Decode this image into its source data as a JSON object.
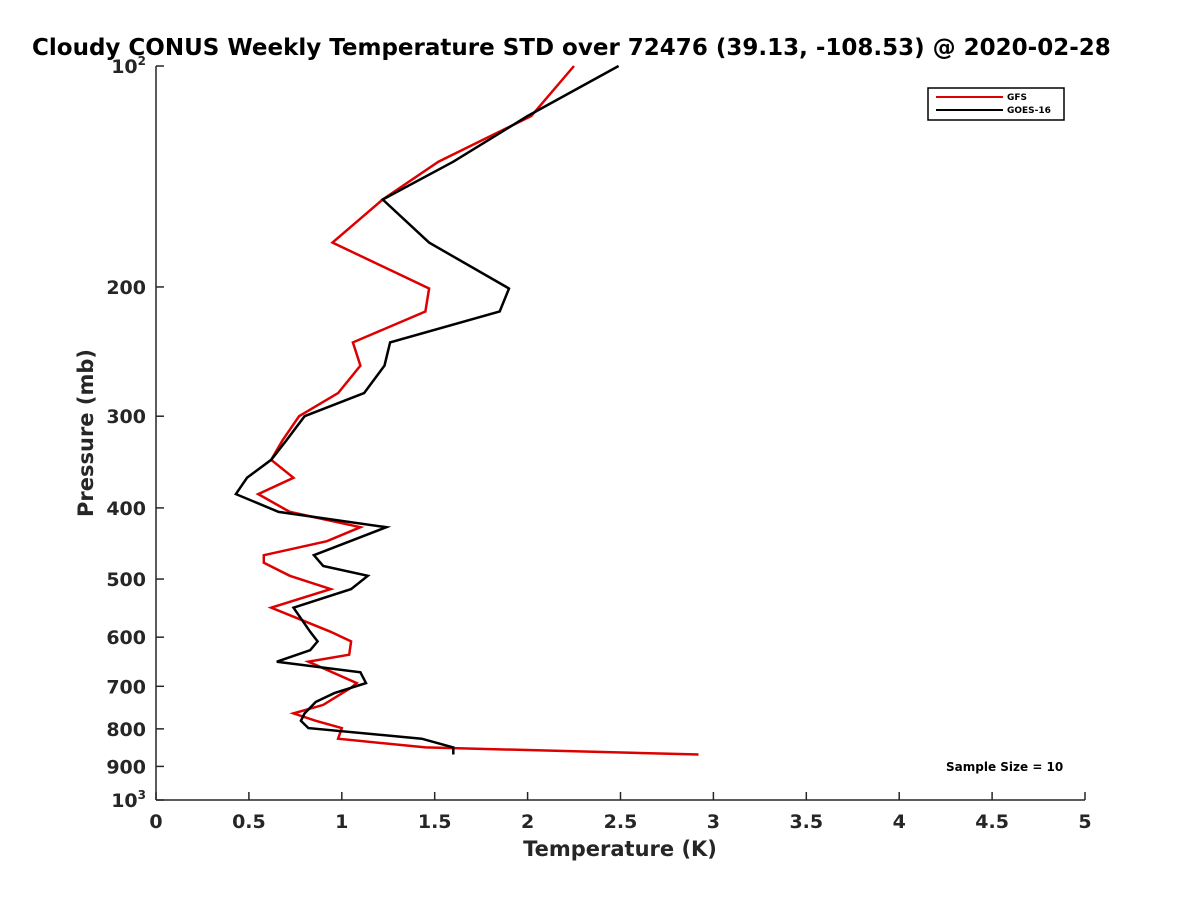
{
  "chart_data": {
    "type": "line",
    "title": "Cloudy CONUS Weekly Temperature STD over 72476 (39.13, -108.53) @ 2020-02-28",
    "xlabel": "Temperature (K)",
    "ylabel": "Pressure (mb)",
    "xlim": [
      0,
      5
    ],
    "ylim": [
      100,
      1000
    ],
    "yscale": "log",
    "y_reversed": true,
    "x_ticks": [
      "0",
      "0.5",
      "1",
      "1.5",
      "2",
      "2.5",
      "3",
      "3.5",
      "4",
      "4.5",
      "5"
    ],
    "y_ticks": [
      {
        "value": 100,
        "label": "10",
        "sup": "2"
      },
      {
        "value": 200,
        "label": "200",
        "sup": ""
      },
      {
        "value": 300,
        "label": "300",
        "sup": ""
      },
      {
        "value": 400,
        "label": "400",
        "sup": ""
      },
      {
        "value": 500,
        "label": "500",
        "sup": ""
      },
      {
        "value": 600,
        "label": "600",
        "sup": ""
      },
      {
        "value": 700,
        "label": "700",
        "sup": ""
      },
      {
        "value": 800,
        "label": "800",
        "sup": ""
      },
      {
        "value": 900,
        "label": "900",
        "sup": ""
      },
      {
        "value": 1000,
        "label": "10",
        "sup": "3"
      }
    ],
    "grid": false,
    "legend_position": "top-right",
    "annotation": "Sample Size = 10",
    "series": [
      {
        "name": "GFS",
        "color": "#dd0000",
        "points": [
          [
            2.25,
            100
          ],
          [
            2.02,
            117
          ],
          [
            1.52,
            135
          ],
          [
            1.22,
            152
          ],
          [
            0.95,
            174
          ],
          [
            1.47,
            201
          ],
          [
            1.45,
            216
          ],
          [
            1.06,
            238
          ],
          [
            1.1,
            256
          ],
          [
            0.98,
            279
          ],
          [
            0.77,
            300
          ],
          [
            0.68,
            324
          ],
          [
            0.62,
            344
          ],
          [
            0.74,
            364
          ],
          [
            0.55,
            383
          ],
          [
            0.72,
            405
          ],
          [
            1.1,
            425
          ],
          [
            0.92,
            444
          ],
          [
            0.58,
            464
          ],
          [
            0.58,
            475
          ],
          [
            0.72,
            495
          ],
          [
            0.94,
            516
          ],
          [
            0.62,
            547
          ],
          [
            0.94,
            590
          ],
          [
            1.05,
            608
          ],
          [
            1.04,
            634
          ],
          [
            0.82,
            648
          ],
          [
            1.08,
            693
          ],
          [
            1.05,
            703
          ],
          [
            0.9,
            742
          ],
          [
            0.74,
            762
          ],
          [
            0.86,
            780
          ],
          [
            1.0,
            798
          ],
          [
            0.98,
            825
          ],
          [
            1.45,
            848
          ],
          [
            2.92,
            867
          ]
        ]
      },
      {
        "name": "GOES-16",
        "color": "#000000",
        "points": [
          [
            2.49,
            100
          ],
          [
            2.0,
            117
          ],
          [
            1.6,
            135
          ],
          [
            1.22,
            152
          ],
          [
            1.47,
            174
          ],
          [
            1.9,
            201
          ],
          [
            1.85,
            216
          ],
          [
            1.26,
            238
          ],
          [
            1.23,
            256
          ],
          [
            1.12,
            279
          ],
          [
            0.8,
            300
          ],
          [
            0.7,
            324
          ],
          [
            0.62,
            344
          ],
          [
            0.49,
            364
          ],
          [
            0.43,
            383
          ],
          [
            0.66,
            405
          ],
          [
            1.24,
            425
          ],
          [
            0.85,
            464
          ],
          [
            0.9,
            480
          ],
          [
            1.14,
            495
          ],
          [
            1.05,
            516
          ],
          [
            0.74,
            547
          ],
          [
            0.83,
            590
          ],
          [
            0.87,
            608
          ],
          [
            0.83,
            625
          ],
          [
            0.65,
            648
          ],
          [
            1.1,
            670
          ],
          [
            1.13,
            693
          ],
          [
            0.96,
            715
          ],
          [
            0.86,
            735
          ],
          [
            0.8,
            762
          ],
          [
            0.78,
            780
          ],
          [
            0.82,
            798
          ],
          [
            1.43,
            825
          ],
          [
            1.6,
            848
          ],
          [
            1.6,
            867
          ]
        ]
      }
    ]
  }
}
